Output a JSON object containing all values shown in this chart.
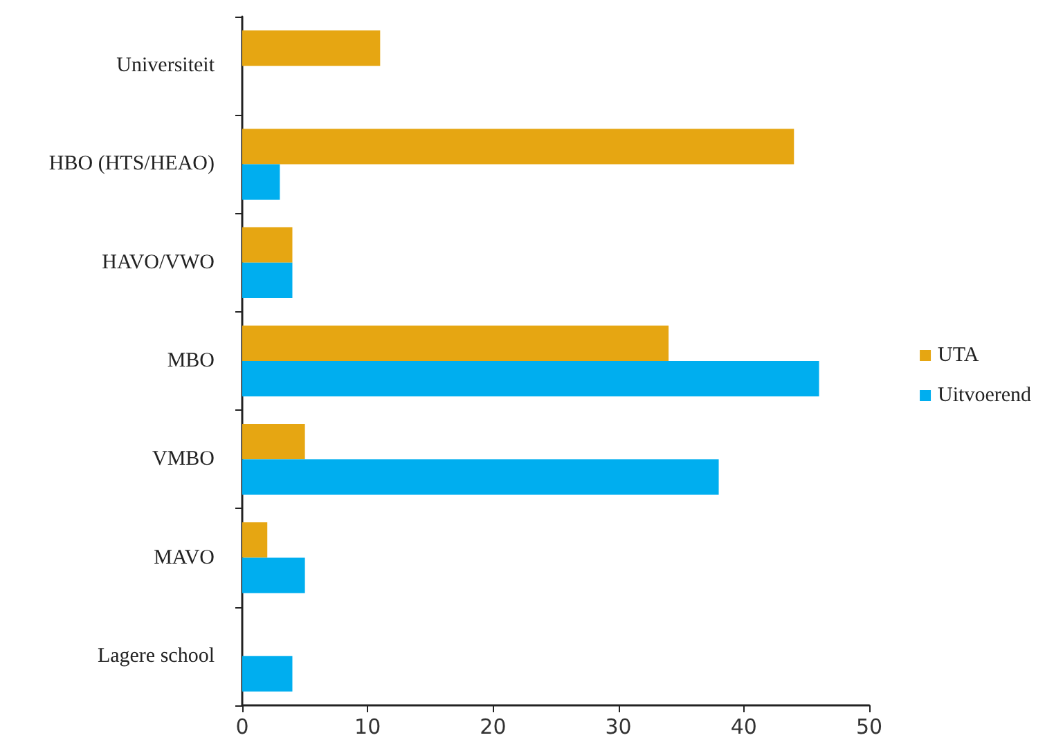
{
  "chart_data": {
    "type": "bar",
    "orientation": "horizontal",
    "categories": [
      "Universiteit",
      "HBO (HTS/HEAO)",
      "HAVO/VWO",
      "MBO",
      "VMBO",
      "MAVO",
      "Lagere school"
    ],
    "series": [
      {
        "name": "UTA",
        "color": "#e6a612",
        "values": [
          11,
          44,
          4,
          34,
          5,
          2,
          null
        ]
      },
      {
        "name": "Uitvoerend",
        "color": "#00aeef",
        "values": [
          null,
          3,
          4,
          46,
          38,
          5,
          4
        ]
      }
    ],
    "xlim": [
      0,
      50
    ],
    "xticks": [
      0,
      10,
      20,
      30,
      40,
      50
    ],
    "grid": false,
    "legend": "right"
  }
}
